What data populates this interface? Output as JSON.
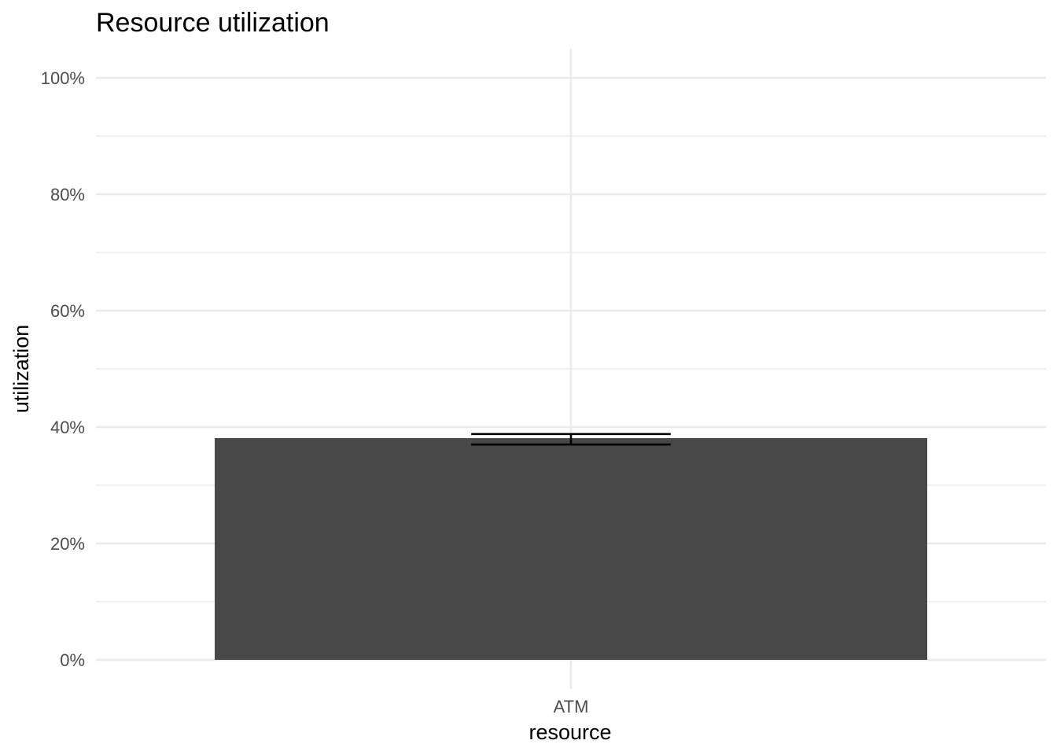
{
  "chart_data": {
    "type": "bar",
    "title": "Resource utilization",
    "xlabel": "resource",
    "ylabel": "utilization",
    "categories": [
      "ATM"
    ],
    "values": [
      0.381
    ],
    "error_bars": [
      {
        "low": 0.37,
        "high": 0.388
      }
    ],
    "ylim": [
      -0.05,
      1.05
    ],
    "yticks": [
      0,
      0.2,
      0.4,
      0.6,
      0.8,
      1.0
    ],
    "ytick_labels": [
      "0%",
      "20%",
      "40%",
      "60%",
      "80%",
      "100%"
    ],
    "grid": true,
    "legend": "none",
    "bar_color": "#484848"
  }
}
